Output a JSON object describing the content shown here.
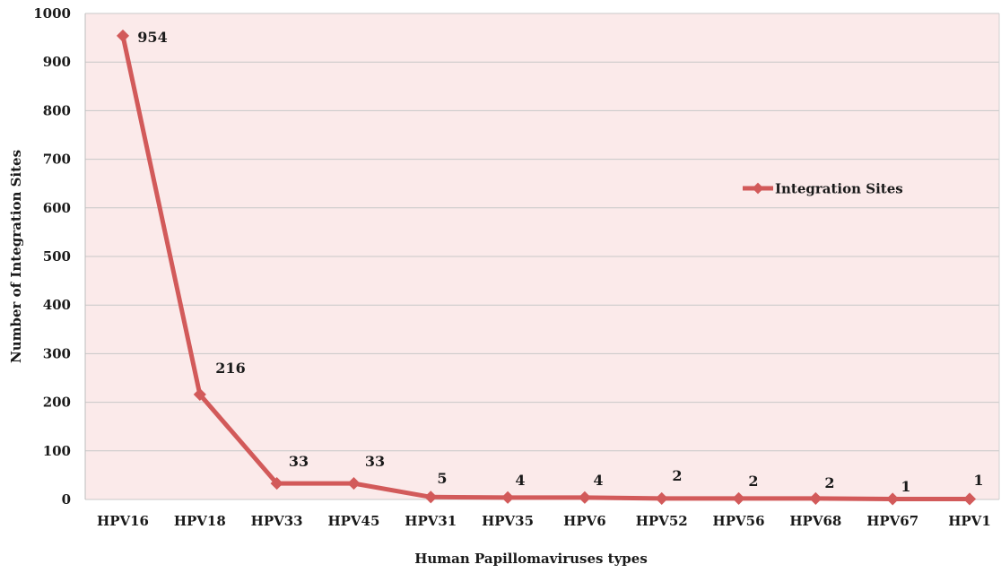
{
  "chart_data": {
    "type": "line",
    "title": "",
    "xlabel": "Human Papillomaviruses types",
    "ylabel": "Number of Integration Sites",
    "categories": [
      "HPV16",
      "HPV18",
      "HPV33",
      "HPV45",
      "HPV31",
      "HPV35",
      "HPV6",
      "HPV52",
      "HPV56",
      "HPV68",
      "HPV67",
      "HPV1"
    ],
    "series": [
      {
        "name": "Integration Sites",
        "values": [
          954,
          216,
          33,
          33,
          5,
          4,
          4,
          2,
          2,
          2,
          1,
          1
        ],
        "color": "#d25a5a"
      }
    ],
    "ylim": [
      0,
      1000
    ],
    "yticks": [
      0,
      100,
      200,
      300,
      400,
      500,
      600,
      700,
      800,
      900,
      1000
    ],
    "grid": true,
    "legend": "right",
    "plot_background": "#fbeaea"
  }
}
